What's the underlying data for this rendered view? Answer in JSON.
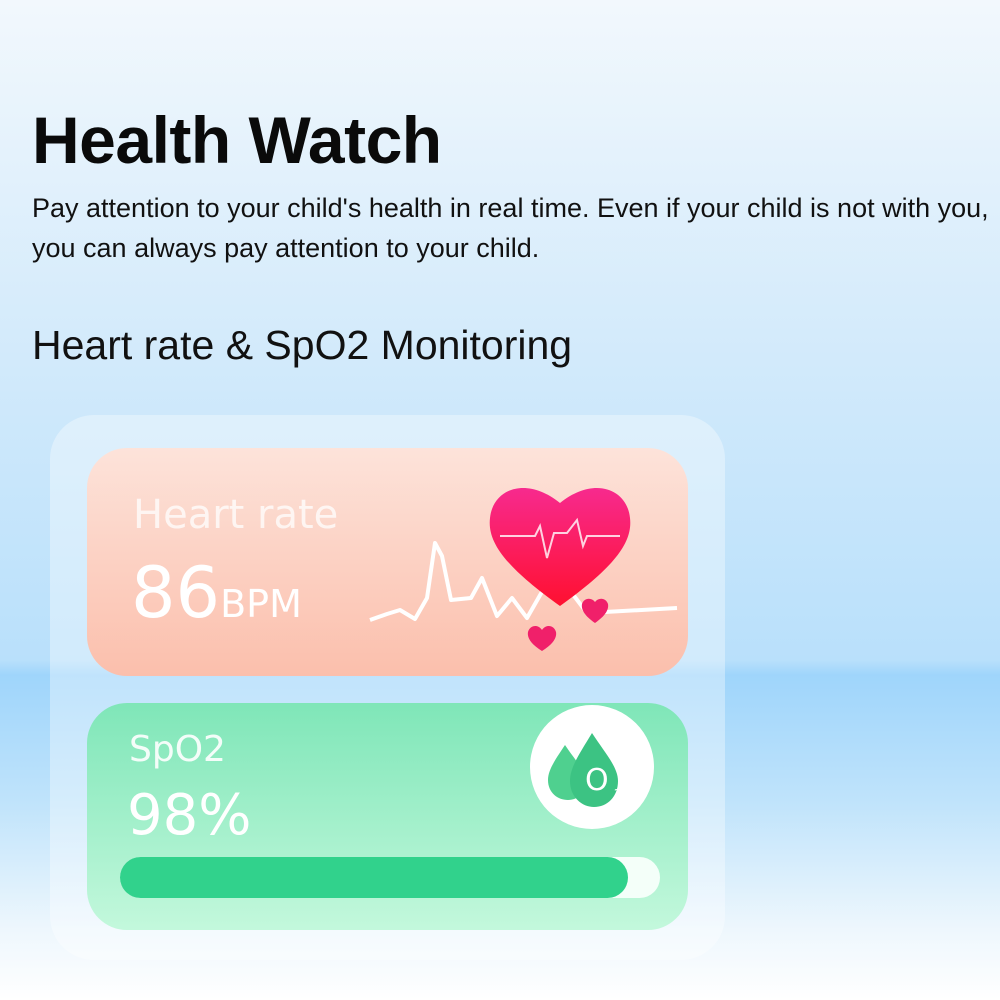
{
  "header": {
    "title": "Health Watch",
    "description": "Pay attention to your child's health in real time. Even if your child is not with you, you can always pay attention to your child."
  },
  "section_title": "Heart rate & SpO2 Monitoring",
  "heart_rate": {
    "label": "Heart rate",
    "value": "86",
    "unit": "BPM",
    "icon": "heart-icon",
    "color": "#f0206a"
  },
  "spo2": {
    "label": "SpO2",
    "value": "98%",
    "icon": "oxygen-drop-icon",
    "progress_percent": 94,
    "color": "#31d28c"
  }
}
